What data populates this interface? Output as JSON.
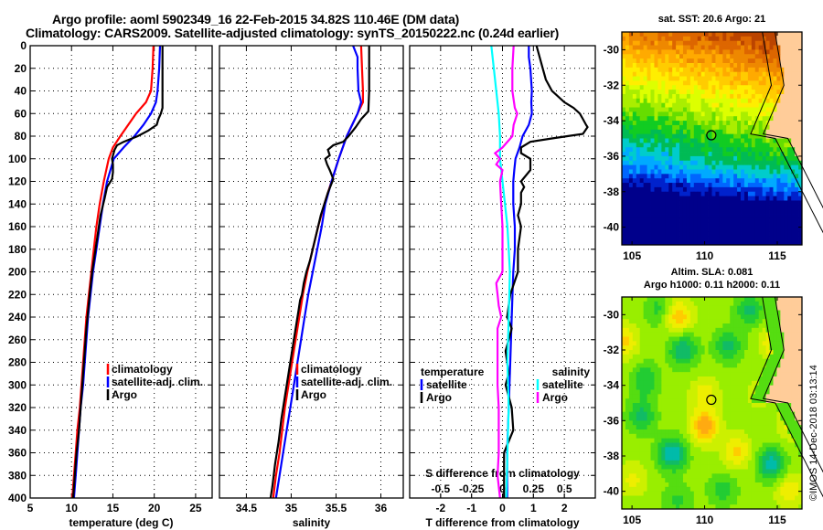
{
  "titles": {
    "line1": "Argo profile: aoml 5902349_16 22-Feb-2015 34.82S 110.46E (DM data)",
    "line2": "Climatology: CARS2009. Satellite-adjusted climatology: synTS_20150222.nc (0.24d earlier)"
  },
  "colors": {
    "climatology": "#ff0000",
    "satellite": "#0000ff",
    "argo": "#000000",
    "salinity_satellite": "#00ffff",
    "salinity_argo": "#ff00ff",
    "land": "#ffcc99"
  },
  "chart_data": [
    {
      "type": "line",
      "name": "temperature-profile",
      "xlabel": "temperature (deg C)",
      "ylabel": "",
      "xlim": [
        5,
        27
      ],
      "ylim": [
        400,
        0
      ],
      "xticks": [
        5,
        10,
        15,
        20,
        25
      ],
      "yticks": [
        0,
        20,
        40,
        60,
        80,
        100,
        120,
        140,
        160,
        180,
        200,
        220,
        240,
        260,
        280,
        300,
        320,
        340,
        360,
        380,
        400
      ],
      "grid": true,
      "legend": {
        "placement": "center-right",
        "entries": [
          "climatology",
          "satellite-adj. clim.",
          "Argo"
        ]
      },
      "series": [
        {
          "name": "climatology",
          "color": "#ff0000",
          "depth": [
            0,
            20,
            40,
            50,
            60,
            80,
            90,
            100,
            120,
            140,
            160,
            180,
            200,
            220,
            240,
            260,
            280,
            300,
            320,
            340,
            360,
            380,
            400
          ],
          "values": [
            19.9,
            19.8,
            19.6,
            19.0,
            17.8,
            15.9,
            15.0,
            14.5,
            13.9,
            13.4,
            13.0,
            12.7,
            12.4,
            12.1,
            11.8,
            11.6,
            11.4,
            11.2,
            11.0,
            10.7,
            10.5,
            10.3,
            10.1
          ]
        },
        {
          "name": "satellite-adj. clim.",
          "color": "#0000ff",
          "depth": [
            0,
            20,
            40,
            50,
            60,
            70,
            80,
            90,
            100,
            120,
            140,
            160,
            180,
            200,
            220,
            240,
            260,
            280,
            300,
            320,
            340,
            360,
            380,
            400
          ],
          "values": [
            20.7,
            20.6,
            20.4,
            20.2,
            19.6,
            18.7,
            17.6,
            16.3,
            15.1,
            14.3,
            13.8,
            13.4,
            13.0,
            12.6,
            12.3,
            12.0,
            11.8,
            11.6,
            11.4,
            11.1,
            10.9,
            10.7,
            10.5,
            10.3
          ]
        },
        {
          "name": "Argo",
          "color": "#000000",
          "depth": [
            0,
            20,
            40,
            55,
            60,
            65,
            70,
            75,
            80,
            85,
            88,
            92,
            100,
            105,
            112,
            118,
            125,
            135,
            150,
            170,
            200,
            220,
            250,
            280,
            300,
            320,
            340,
            360,
            380,
            400
          ],
          "values": [
            21.0,
            21.0,
            21.0,
            21.0,
            20.8,
            20.5,
            20.3,
            19.3,
            18.0,
            16.3,
            15.5,
            15.2,
            14.9,
            15.0,
            15.0,
            14.9,
            14.3,
            14.0,
            13.5,
            13.1,
            12.5,
            12.2,
            11.8,
            11.5,
            11.3,
            11.1,
            10.9,
            10.6,
            10.4,
            10.2
          ]
        }
      ]
    },
    {
      "type": "line",
      "name": "salinity-profile",
      "xlabel": "salinity",
      "ylabel": "",
      "xlim": [
        34.2,
        36.25
      ],
      "ylim": [
        400,
        0
      ],
      "xticks": [
        34.5,
        35,
        35.5,
        36
      ],
      "grid": true,
      "legend": {
        "placement": "center-right",
        "entries": [
          "climatology",
          "satellite-adj. clim.",
          "Argo"
        ]
      },
      "series": [
        {
          "name": "climatology",
          "color": "#ff0000",
          "depth": [
            0,
            20,
            40,
            50,
            60,
            80,
            100,
            120,
            140,
            160,
            180,
            200,
            220,
            240,
            260,
            280,
            300,
            320,
            340,
            360,
            380,
            400
          ],
          "values": [
            35.78,
            35.79,
            35.8,
            35.8,
            35.74,
            35.62,
            35.53,
            35.45,
            35.37,
            35.3,
            35.24,
            35.18,
            35.13,
            35.09,
            35.05,
            35.01,
            34.97,
            34.93,
            34.9,
            34.87,
            34.83,
            34.8
          ]
        },
        {
          "name": "satellite-adj. clim.",
          "color": "#0000ff",
          "depth": [
            0,
            10,
            20,
            40,
            50,
            60,
            80,
            100,
            120,
            140,
            160,
            180,
            200,
            220,
            240,
            260,
            280,
            300,
            320,
            340,
            360,
            380,
            400
          ],
          "values": [
            35.69,
            35.74,
            35.74,
            35.75,
            35.78,
            35.74,
            35.62,
            35.53,
            35.45,
            35.38,
            35.34,
            35.29,
            35.24,
            35.19,
            35.15,
            35.11,
            35.07,
            35.03,
            34.99,
            34.95,
            34.91,
            34.87,
            34.83
          ]
        },
        {
          "name": "Argo",
          "color": "#000000",
          "depth": [
            0,
            20,
            40,
            58,
            65,
            72,
            80,
            85,
            88,
            92,
            97,
            100,
            105,
            110,
            118,
            130,
            150,
            170,
            190,
            200,
            210,
            220,
            225,
            235,
            250,
            270,
            290,
            310,
            330,
            350,
            370,
            390,
            400
          ],
          "values": [
            35.87,
            35.87,
            35.87,
            35.86,
            35.78,
            35.72,
            35.64,
            35.58,
            35.47,
            35.41,
            35.43,
            35.38,
            35.4,
            35.43,
            35.47,
            35.41,
            35.33,
            35.27,
            35.21,
            35.17,
            35.14,
            35.12,
            35.1,
            35.08,
            35.05,
            35.01,
            34.97,
            34.93,
            34.89,
            34.86,
            34.82,
            34.79,
            34.77
          ]
        }
      ]
    },
    {
      "type": "line",
      "name": "difference-profile",
      "xlabel": "T difference from climatology",
      "x2label": "S difference from climatology",
      "xlim": [
        -3,
        3
      ],
      "x2lim": [
        -0.75,
        0.75
      ],
      "ylim": [
        400,
        0
      ],
      "xticks": [
        -2,
        -1,
        0,
        1,
        2
      ],
      "x2ticks": [
        -0.5,
        -0.25,
        0,
        0.25,
        0.5
      ],
      "grid": true,
      "legend": {
        "placement": "lower",
        "groups": [
          {
            "title": "temperature",
            "entries": [
              "satellite",
              "Argo"
            ]
          },
          {
            "title": "salinity",
            "entries": [
              "satellite",
              "Argo"
            ]
          }
        ]
      },
      "series": [
        {
          "name": "temperature satellite",
          "axis": "T",
          "color": "#0000ff",
          "depth": [
            0,
            10,
            20,
            40,
            50,
            60,
            70,
            80,
            90,
            100,
            110,
            120,
            140,
            160,
            180,
            200,
            240,
            280,
            320,
            360,
            400
          ],
          "values": [
            0.85,
            0.85,
            0.9,
            0.95,
            0.93,
            0.95,
            0.85,
            0.65,
            0.55,
            0.42,
            0.38,
            0.35,
            0.35,
            0.4,
            0.4,
            0.35,
            0.3,
            0.25,
            0.2,
            0.15,
            0.15
          ]
        },
        {
          "name": "temperature Argo",
          "axis": "T",
          "color": "#000000",
          "depth": [
            0,
            10,
            20,
            30,
            40,
            50,
            55,
            60,
            65,
            70,
            72,
            78,
            80,
            82,
            85,
            90,
            95,
            100,
            105,
            110,
            120,
            125,
            130,
            140,
            150,
            160,
            180,
            200,
            220,
            240,
            250,
            260,
            270,
            280,
            290,
            300,
            320,
            340,
            360,
            380,
            400
          ],
          "values": [
            1.1,
            1.2,
            1.3,
            1.4,
            1.6,
            2.0,
            2.3,
            2.5,
            2.6,
            2.7,
            2.75,
            2.6,
            2.1,
            1.6,
            0.9,
            0.6,
            0.6,
            0.9,
            0.9,
            0.9,
            0.6,
            0.7,
            0.6,
            0.6,
            0.5,
            0.6,
            0.5,
            0.5,
            0.25,
            0.15,
            0.3,
            0.2,
            0.1,
            0.15,
            0.2,
            0.1,
            0.3,
            0.35,
            0.05,
            0.05,
            0.05
          ]
        },
        {
          "name": "salinity satellite",
          "axis": "S",
          "color": "#00ffff",
          "depth": [
            0,
            20,
            40,
            60,
            80,
            100,
            120,
            140,
            160,
            180,
            200,
            240,
            280,
            320,
            360,
            400
          ],
          "values": [
            -0.09,
            -0.07,
            -0.05,
            -0.03,
            -0.02,
            -0.02,
            0.0,
            0.02,
            0.04,
            0.05,
            0.06,
            0.05,
            0.04,
            0.05,
            0.04,
            0.03
          ]
        },
        {
          "name": "salinity Argo",
          "axis": "S",
          "color": "#ff00ff",
          "depth": [
            0,
            20,
            40,
            55,
            60,
            70,
            80,
            90,
            95,
            100,
            105,
            110,
            120,
            140,
            160,
            180,
            200,
            210,
            220,
            230,
            240,
            250,
            260,
            280,
            300,
            320,
            340,
            360,
            380,
            400
          ],
          "values": [
            0.09,
            0.08,
            0.08,
            0.1,
            0.12,
            0.09,
            0.08,
            0.0,
            -0.06,
            -0.02,
            -0.05,
            0.0,
            -0.02,
            -0.01,
            0.0,
            0.0,
            0.0,
            -0.05,
            -0.04,
            -0.03,
            -0.01,
            -0.04,
            -0.04,
            -0.04,
            -0.04,
            -0.03,
            -0.03,
            -0.03,
            -0.04,
            -0.02
          ]
        }
      ]
    },
    {
      "type": "heatmap",
      "name": "sst-map",
      "title": "sat. SST: 20.6  Argo: 21",
      "xlim": [
        104.3,
        116.7
      ],
      "ylim": [
        -41,
        -29
      ],
      "xticks": [
        105,
        110,
        115
      ],
      "yticks": [
        -30,
        -32,
        -34,
        -36,
        -38,
        -40
      ],
      "marker": {
        "lon": 110.46,
        "lat": -34.82
      }
    },
    {
      "type": "heatmap",
      "name": "sla-map",
      "title": "Altim. SLA: 0.081",
      "subtitle": "Argo h1000: 0.11 h2000: 0.11",
      "xlim": [
        104.3,
        116.7
      ],
      "ylim": [
        -41,
        -29
      ],
      "xticks": [
        105,
        110,
        115
      ],
      "yticks": [
        -30,
        -32,
        -34,
        -36,
        -38,
        -40
      ],
      "marker": {
        "lon": 110.46,
        "lat": -34.82
      }
    }
  ],
  "footer": {
    "credit": "©IMOS 14-Dec-2018 03:13:14"
  }
}
